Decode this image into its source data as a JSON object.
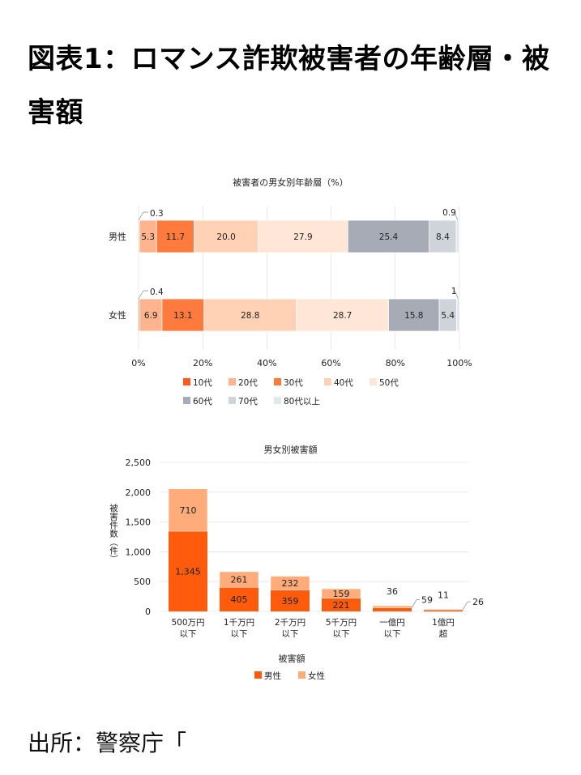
{
  "page": {
    "title": "図表1：ロマンス詐欺被害者の年齢層・被害額",
    "source": "出所：警察庁「"
  },
  "colors": {
    "10代": "#ff5a1f",
    "20代": "#ffb48e",
    "30代": "#ff7a3d",
    "40代": "#ffd2b6",
    "50代": "#ffe6d6",
    "60代": "#a6abb6",
    "70代": "#cfd3da",
    "80代以上": "#e3e6eb",
    "male": "#ff5b0d",
    "female": "#ffab7a",
    "grid": "#d9d9d9"
  },
  "chart_data": [
    {
      "type": "bar",
      "orientation": "horizontal-stacked-percent",
      "title": "被害者の男女別年齢層（%）",
      "categories": [
        "男性",
        "女性"
      ],
      "x_ticks": [
        "0%",
        "20%",
        "40%",
        "60%",
        "80%",
        "100%"
      ],
      "xlim": [
        0,
        100
      ],
      "legend_position": "bottom",
      "series": [
        {
          "name": "10代",
          "values": [
            0.3,
            0.4
          ]
        },
        {
          "name": "20代",
          "values": [
            5.3,
            6.9
          ]
        },
        {
          "name": "30代",
          "values": [
            11.7,
            13.1
          ]
        },
        {
          "name": "40代",
          "values": [
            20.0,
            28.8
          ]
        },
        {
          "name": "50代",
          "values": [
            27.9,
            28.7
          ]
        },
        {
          "name": "60代",
          "values": [
            25.4,
            15.8
          ]
        },
        {
          "name": "70代",
          "values": [
            8.4,
            5.4
          ]
        },
        {
          "name": "80代以上",
          "values": [
            0.9,
            1
          ]
        }
      ],
      "data_labels": [
        [
          "0.3",
          "5.3",
          "11.7",
          "20.0",
          "27.9",
          "25.4",
          "8.4",
          "0.9"
        ],
        [
          "0.4",
          "6.9",
          "13.1",
          "28.8",
          "28.7",
          "15.8",
          "5.4",
          "1"
        ]
      ]
    },
    {
      "type": "bar",
      "orientation": "vertical-stacked",
      "title": "男女別被害額",
      "xlabel": "被害額",
      "ylabel": "被害件数（件）",
      "ylim": [
        0,
        2500
      ],
      "y_ticks": [
        "0",
        "500",
        "1,000",
        "1,500",
        "2,000",
        "2,500"
      ],
      "categories": [
        [
          "500万円",
          "以下"
        ],
        [
          "1千万円",
          "以下"
        ],
        [
          "2千万円",
          "以下"
        ],
        [
          "5千万円",
          "以下"
        ],
        [
          "一億円",
          "以下"
        ],
        [
          "1億円",
          "超"
        ]
      ],
      "legend_position": "bottom",
      "series": [
        {
          "name": "男性",
          "values": [
            1345,
            405,
            359,
            221,
            59,
            26
          ],
          "labels": [
            "1,345",
            "405",
            "359",
            "221",
            "59",
            "26"
          ]
        },
        {
          "name": "女性",
          "values": [
            710,
            261,
            232,
            159,
            36,
            11
          ],
          "labels": [
            "710",
            "261",
            "232",
            "159",
            "36",
            "11"
          ]
        }
      ]
    }
  ]
}
